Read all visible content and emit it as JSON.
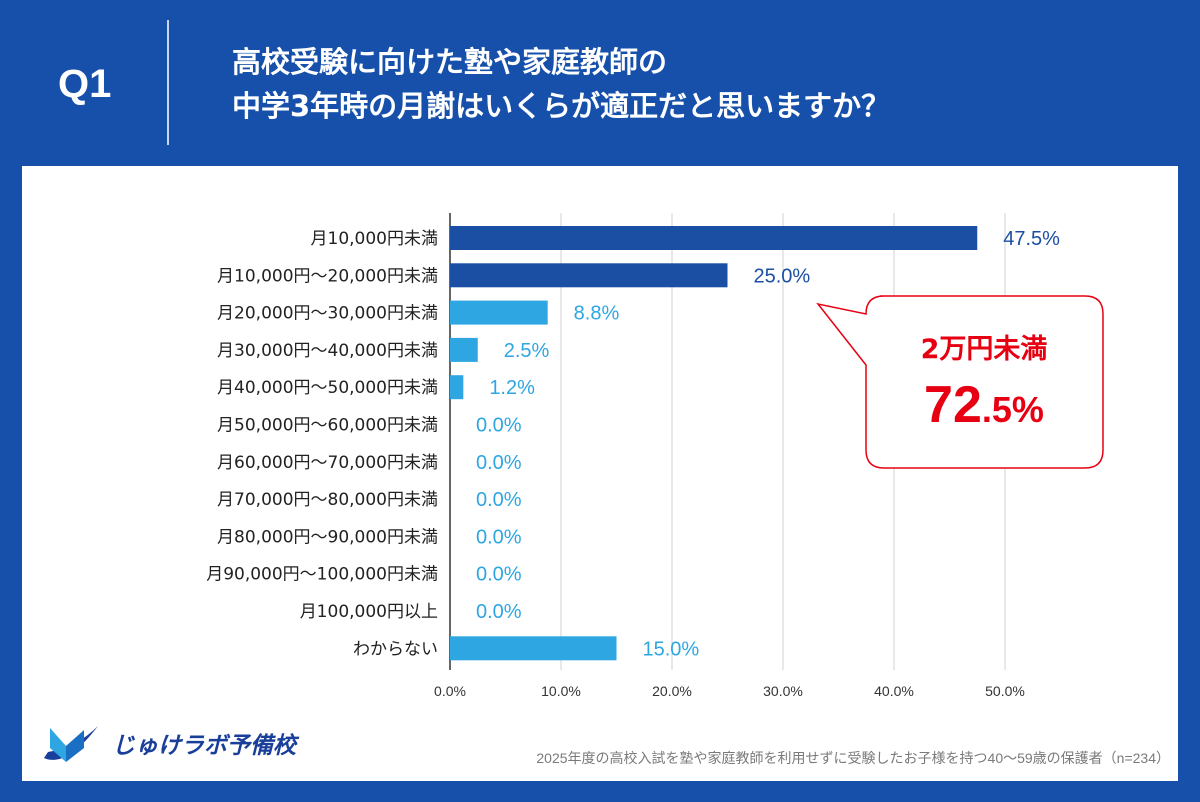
{
  "header": {
    "q": "Q1",
    "title_line1": "高校受験に向けた塾や家庭教師の",
    "title_line2": "中学3年時の月謝はいくらが適正だと思いますか？"
  },
  "chart_data": {
    "type": "bar",
    "orientation": "horizontal",
    "categories": [
      "月10,000円未満",
      "月10,000円〜20,000円未満",
      "月20,000円〜30,000円未満",
      "月30,000円〜40,000円未満",
      "月40,000円〜50,000円未満",
      "月50,000円〜60,000円未満",
      "月60,000円〜70,000円未満",
      "月70,000円〜80,000円未満",
      "月80,000円〜90,000円未満",
      "月90,000円〜100,000円未満",
      "月100,000円以上",
      "わからない"
    ],
    "values": [
      47.5,
      25.0,
      8.8,
      2.5,
      1.2,
      0.0,
      0.0,
      0.0,
      0.0,
      0.0,
      0.0,
      15.0
    ],
    "value_labels": [
      "47.5%",
      "25.0%",
      "8.8%",
      "2.5%",
      "1.2%",
      "0.0%",
      "0.0%",
      "0.0%",
      "0.0%",
      "0.0%",
      "0.0%",
      "15.0%"
    ],
    "xlim": [
      0,
      50
    ],
    "xticks": [
      "0.0%",
      "10.0%",
      "20.0%",
      "30.0%",
      "40.0%",
      "50.0%"
    ],
    "grid": true,
    "colors": {
      "highlight": "#1a4fa3",
      "normal": "#2ea6e2"
    },
    "highlighted_count": 2
  },
  "callout": {
    "line1": "2万円未満",
    "value_big": "72",
    "value_small": ".5%",
    "color": "#e60012"
  },
  "footer": {
    "logo": "じゅけラボ予備校",
    "note": "2025年度の高校入試を塾や家庭教師を利用せずに受験したお子様を持つ40〜59歳の保護者（n=234）"
  }
}
